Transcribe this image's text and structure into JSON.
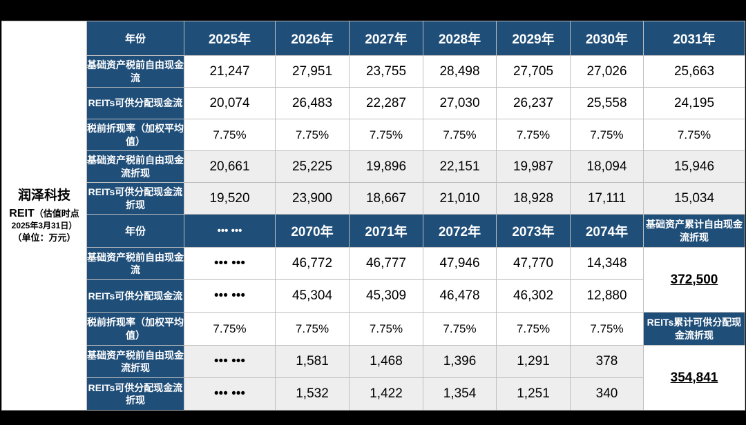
{
  "entity": {
    "name": "润泽科技",
    "reit": "REIT",
    "note": "（估值时点",
    "date": "2025年3月31日）",
    "unit": "（单位：万元）"
  },
  "top": {
    "header_label": "年份",
    "years": [
      "2025年",
      "2026年",
      "2027年",
      "2028年",
      "2029年",
      "2030年",
      "2031年"
    ],
    "rows": [
      {
        "label": "基础资产税前自由现金流",
        "values": [
          "21,247",
          "27,951",
          "23,755",
          "28,498",
          "27,705",
          "27,026",
          "25,663"
        ]
      },
      {
        "label": "REITs可供分配现金流",
        "values": [
          "20,074",
          "26,483",
          "22,287",
          "27,030",
          "26,237",
          "25,558",
          "24,195"
        ]
      },
      {
        "label": "税前折现率（加权平均值）",
        "values": [
          "7.75%",
          "7.75%",
          "7.75%",
          "7.75%",
          "7.75%",
          "7.75%",
          "7.75%"
        ]
      },
      {
        "label": "基础资产税前自由现金流折现",
        "values": [
          "20,661",
          "25,225",
          "19,896",
          "22,151",
          "19,987",
          "18,094",
          "15,946"
        ]
      },
      {
        "label": "REITs可供分配现金流折现",
        "values": [
          "19,520",
          "23,900",
          "18,667",
          "21,010",
          "18,928",
          "17,111",
          "15,034"
        ]
      }
    ]
  },
  "bottom": {
    "header_label": "年份",
    "years": [
      "••• •••",
      "2070年",
      "2071年",
      "2072年",
      "2073年",
      "2074年"
    ],
    "box1_label": "基础资产累计自由现金流折现",
    "box1_value": "372,500",
    "box2_label": "REITs累计可供分配现金流折现",
    "box2_value": "354,841",
    "rows": [
      {
        "label": "基础资产税前自由现金流",
        "values": [
          "••• •••",
          "46,772",
          "46,777",
          "47,946",
          "47,770",
          "14,348"
        ]
      },
      {
        "label": "REITs可供分配现金流",
        "values": [
          "••• •••",
          "45,304",
          "45,309",
          "46,478",
          "46,302",
          "12,880"
        ]
      },
      {
        "label": "税前折现率（加权平均值）",
        "values": [
          "7.75%",
          "7.75%",
          "7.75%",
          "7.75%",
          "7.75%",
          "7.75%"
        ]
      },
      {
        "label": "基础资产税前自由现金流折现",
        "values": [
          "••• •••",
          "1,581",
          "1,468",
          "1,396",
          "1,291",
          "378"
        ]
      },
      {
        "label": "REITs可供分配现金流折现",
        "values": [
          "••• •••",
          "1,532",
          "1,422",
          "1,354",
          "1,251",
          "340"
        ]
      }
    ]
  }
}
